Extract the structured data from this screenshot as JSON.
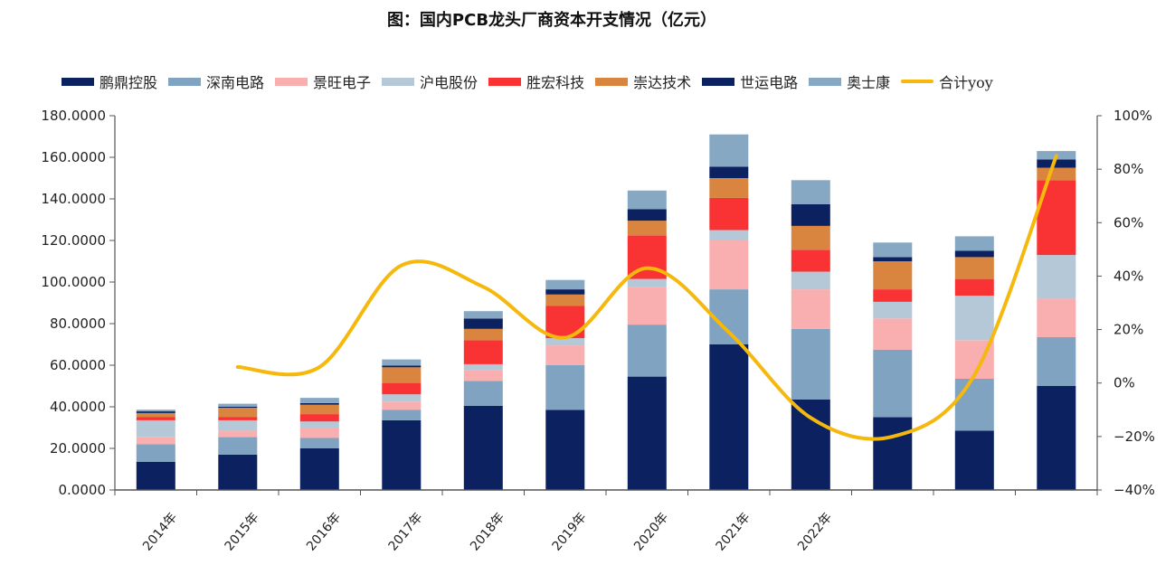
{
  "chart_data": {
    "type": "bar",
    "subtype": "stacked-bar-with-line",
    "title": "图：国内PCB龙头厂商资本开支情况（亿元）",
    "categories": [
      "2014年",
      "2015年",
      "2016年",
      "2017年",
      "2018年",
      "2019年",
      "2020年",
      "2021年",
      "2022年",
      "",
      "",
      ""
    ],
    "xlabel": "",
    "ylabel": "",
    "ylim": [
      0,
      180
    ],
    "yticks": [
      "0.0000",
      "20.0000",
      "40.0000",
      "60.0000",
      "80.0000",
      "100.0000",
      "120.0000",
      "140.0000",
      "160.0000",
      "180.0000"
    ],
    "y2lim": [
      -40,
      100
    ],
    "y2ticks": [
      "-40%",
      "-20%",
      "0%",
      "20%",
      "40%",
      "60%",
      "80%",
      "100%"
    ],
    "grid": false,
    "legend_position": "top",
    "series": [
      {
        "name": "鹏鼎控股",
        "kind": "bar",
        "color": "#0b2160",
        "values": [
          13.5,
          17,
          20,
          33.5,
          40.5,
          38.5,
          54.5,
          70,
          43.5,
          35,
          28.5,
          50
        ]
      },
      {
        "name": "深南电路",
        "kind": "bar",
        "color": "#7fa3c0",
        "values": [
          8.5,
          8.5,
          5,
          5,
          12,
          21.5,
          25,
          26.5,
          34,
          32.5,
          25,
          23.5
        ]
      },
      {
        "name": "景旺电子",
        "kind": "bar",
        "color": "#f9aeb0",
        "values": [
          3.5,
          3,
          5,
          4,
          5,
          9.5,
          18,
          23.5,
          19,
          15,
          18.5,
          18.5
        ]
      },
      {
        "name": "沪电股份",
        "kind": "bar",
        "color": "#b5c8d8",
        "values": [
          8,
          5,
          3,
          3.5,
          3,
          3.5,
          4,
          5,
          8.5,
          8,
          21.5,
          21
        ]
      },
      {
        "name": "胜宏科技",
        "kind": "bar",
        "color": "#f93333",
        "values": [
          1.5,
          1.5,
          3.5,
          5.5,
          11.5,
          15.5,
          21,
          15.5,
          10.5,
          6,
          8,
          36
        ]
      },
      {
        "name": "崇达技术",
        "kind": "bar",
        "color": "#d9843f",
        "values": [
          2,
          4.5,
          4.5,
          7.5,
          5.5,
          5.5,
          7,
          9.5,
          11.5,
          13.5,
          10.5,
          6
        ]
      },
      {
        "name": "世运电路",
        "kind": "bar",
        "color": "#0b2160",
        "values": [
          0.8,
          0.5,
          0.8,
          0.8,
          5,
          2.5,
          5.5,
          5.5,
          10.5,
          2,
          3,
          4
        ]
      },
      {
        "name": "奥士康",
        "kind": "bar",
        "color": "#86a8c3",
        "values": [
          0.8,
          1.5,
          2.5,
          3,
          3.5,
          4.5,
          9,
          15.5,
          11.5,
          7,
          7,
          4
        ]
      },
      {
        "name": "合计yoy",
        "kind": "line",
        "axis": "right",
        "unit": "%",
        "color": "#f5b80d",
        "values": [
          null,
          6,
          6,
          44,
          36,
          17,
          43,
          19,
          -13,
          -20,
          3,
          85
        ]
      }
    ]
  }
}
